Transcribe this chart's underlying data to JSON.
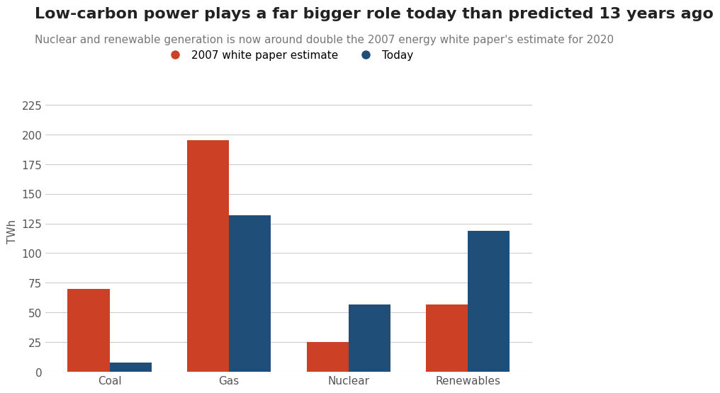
{
  "title": "Low-carbon power plays a far bigger role today than predicted 13 years ago",
  "subtitle": "Nuclear and renewable generation is now around double the 2007 energy white paper's estimate for 2020",
  "categories": [
    "Coal",
    "Gas",
    "Nuclear",
    "Renewables"
  ],
  "white_paper_values": [
    70,
    195,
    25,
    57
  ],
  "today_values": [
    8,
    132,
    57,
    119
  ],
  "white_paper_color": "#CC4125",
  "today_color": "#1F4E79",
  "ylabel": "TWh",
  "ylim": [
    0,
    237
  ],
  "yticks": [
    0,
    25,
    50,
    75,
    100,
    125,
    150,
    175,
    200,
    225
  ],
  "legend_label_1": "2007 white paper estimate",
  "legend_label_2": "Today",
  "background_color": "#FFFFFF",
  "grid_color": "#CCCCCC",
  "bar_width": 0.35,
  "title_fontsize": 16,
  "subtitle_fontsize": 11,
  "axis_label_fontsize": 11,
  "tick_fontsize": 11,
  "legend_fontsize": 11
}
